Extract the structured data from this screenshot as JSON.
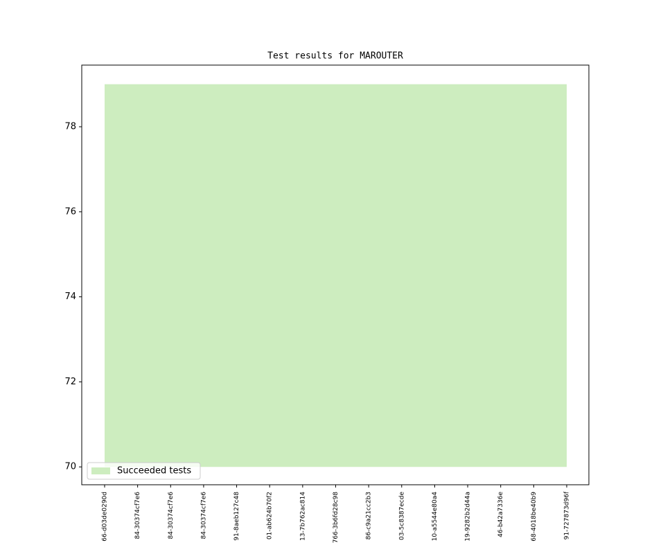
{
  "chart_data": {
    "type": "area",
    "title": "Test results for MAROUTER",
    "categories": [
      "66-d03de0290d",
      "84-30374cf7e6",
      "84-30374cf7e6",
      "84-30374cf7e6",
      "91-8aeb127c48",
      "01-ab624b70f2",
      "13-7b762ac814",
      "766-3b6fd28c98",
      "86-c9a21cc2b3",
      "03-5c8387ecde",
      "10-a5544e80a4",
      "19-9282b2d44a",
      "46-b42a7336e",
      "68-4018be40b9",
      "91-727873d96f"
    ],
    "baseline": 70,
    "series": [
      {
        "name": "Succeeded tests",
        "color": "#cdedbf",
        "values": [
          79,
          79,
          79,
          79,
          79,
          79,
          79,
          79,
          79,
          79,
          79,
          79,
          79,
          79,
          79
        ]
      }
    ],
    "ylim": [
      69.58,
      79.45
    ],
    "yticks": [
      70,
      72,
      74,
      76,
      78
    ],
    "legend": "lower left"
  }
}
